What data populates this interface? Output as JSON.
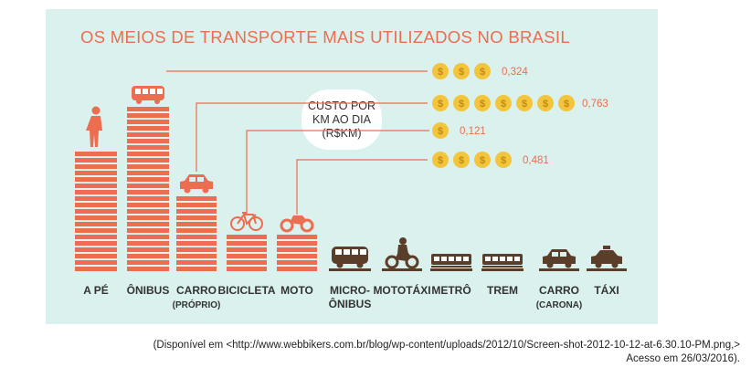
{
  "title": "OS MEIOS DE TRANSPORTE MAIS UTILIZADOS NO BRASIL",
  "cost_box": {
    "line1": "CUSTO POR",
    "line2": "KM AO DIA",
    "line3": "(R$KM)"
  },
  "coin_symbol": "$",
  "colors": {
    "panel": "#daf1ee",
    "coral": "#ec6d50",
    "brown": "#5b3e2a",
    "coin": "#f2c53d",
    "line": "#ec6d50"
  },
  "chart_data": {
    "type": "bar",
    "title": "OS MEIOS DE TRANSPORTE MAIS UTILIZADOS NO BRASIL",
    "xlabel": "",
    "ylabel": "",
    "categories": [
      {
        "label": "A PÉ",
        "sub": "",
        "stripes": 19,
        "color": "coral",
        "icon": "pedestrian-icon"
      },
      {
        "label": "ÔNIBUS",
        "sub": "",
        "stripes": 26,
        "color": "coral",
        "icon": "bus-icon"
      },
      {
        "label": "CARRO",
        "sub": "(PRÓPRIO)",
        "stripes": 12,
        "color": "coral",
        "icon": "car-icon"
      },
      {
        "label": "BICICLETA",
        "sub": "",
        "stripes": 6,
        "color": "coral",
        "icon": "bicycle-icon"
      },
      {
        "label": "MOTO",
        "sub": "",
        "stripes": 6,
        "color": "coral",
        "icon": "motorcycle-icon"
      },
      {
        "label": "MICRO-",
        "sub": "ÔNIBUS",
        "stripes": 0,
        "color": "brown",
        "icon": "minibus-icon"
      },
      {
        "label": "MOTOTÁXI",
        "sub": "",
        "stripes": 0,
        "color": "brown",
        "icon": "mototaxi-icon"
      },
      {
        "label": "METRÔ",
        "sub": "",
        "stripes": 0,
        "color": "brown",
        "icon": "metro-icon"
      },
      {
        "label": "TREM",
        "sub": "",
        "stripes": 0,
        "color": "brown",
        "icon": "train-icon"
      },
      {
        "label": "CARRO",
        "sub": "(CARONA)",
        "stripes": 0,
        "color": "brown",
        "icon": "car-carona-icon"
      },
      {
        "label": "TÁXI",
        "sub": "",
        "stripes": 0,
        "color": "brown",
        "icon": "taxi-icon"
      }
    ],
    "costs": [
      {
        "mode": "ÔNIBUS",
        "value": "0,324",
        "coins": 3
      },
      {
        "mode": "CARRO (PRÓPRIO)",
        "value": "0,763",
        "coins": 7
      },
      {
        "mode": "BICICLETA",
        "value": "0,121",
        "coins": 1
      },
      {
        "mode": "MOTO",
        "value": "0,481",
        "coins": 4
      }
    ]
  },
  "caption": {
    "line1": "(Disponível em <http://www.webbikers.com.br/blog/wp-content/uploads/2012/10/Screen-shot-2012-10-12-at-6.30.10-PM.png,>",
    "line2": "Acesso em 26/03/2016)."
  }
}
